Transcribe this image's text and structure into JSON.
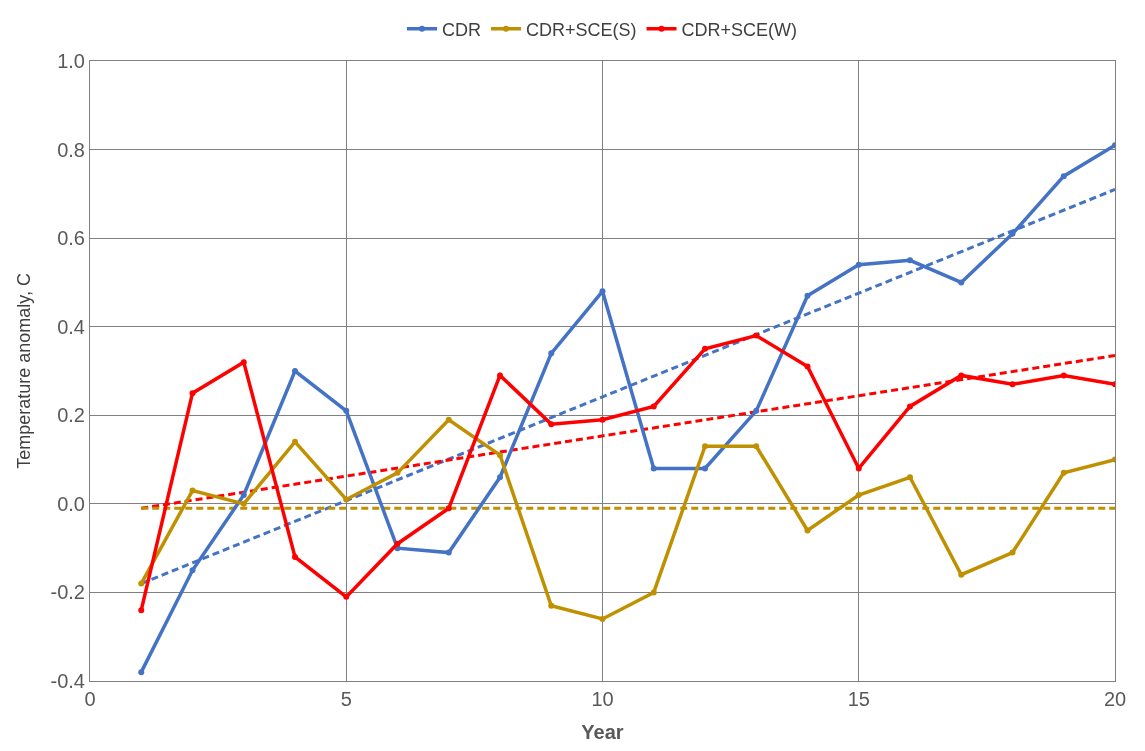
{
  "chart_data": {
    "type": "line",
    "xlabel": "Year",
    "ylabel": "Temperature anomaly, C",
    "x": [
      1,
      2,
      3,
      4,
      5,
      6,
      7,
      8,
      9,
      10,
      11,
      12,
      13,
      14,
      15,
      16,
      17,
      18,
      19,
      20
    ],
    "series": [
      {
        "name": "CDR",
        "color": "#4472c4",
        "marker": "circle",
        "line_style": "solid",
        "values": [
          -0.38,
          -0.15,
          0.02,
          0.3,
          0.21,
          -0.1,
          -0.11,
          0.06,
          0.34,
          0.48,
          0.08,
          0.08,
          0.21,
          0.47,
          0.54,
          0.55,
          0.5,
          0.61,
          0.74,
          0.81
        ]
      },
      {
        "name": "CDR+SCE(S)",
        "color": "#bf9000",
        "marker": "circle",
        "line_style": "solid",
        "values": [
          -0.18,
          0.03,
          0.0,
          0.14,
          0.01,
          0.07,
          0.19,
          0.11,
          -0.23,
          -0.26,
          -0.2,
          0.13,
          0.13,
          -0.06,
          0.02,
          0.06,
          -0.16,
          -0.11,
          0.07,
          0.1
        ]
      },
      {
        "name": "CDR+SCE(W)",
        "color": "#ff0000",
        "marker": "circle",
        "line_style": "solid",
        "values": [
          -0.24,
          0.25,
          0.32,
          -0.12,
          -0.21,
          -0.09,
          -0.01,
          0.29,
          0.18,
          0.19,
          0.22,
          0.35,
          0.38,
          0.31,
          0.08,
          0.22,
          0.29,
          0.27,
          0.29,
          0.27
        ]
      },
      {
        "color": "#4472c4",
        "marker": "none",
        "line_style": "dashed",
        "values": [
          -0.18,
          null,
          null,
          null,
          null,
          null,
          null,
          null,
          null,
          null,
          null,
          null,
          null,
          null,
          null,
          null,
          null,
          null,
          null,
          0.71
        ]
      },
      {
        "color": "#ff0000",
        "marker": "none",
        "line_style": "dashed",
        "values": [
          -0.01,
          null,
          null,
          null,
          null,
          null,
          null,
          null,
          null,
          null,
          null,
          null,
          null,
          null,
          null,
          null,
          null,
          null,
          null,
          0.335
        ]
      },
      {
        "color": "#bf9000",
        "marker": "none",
        "line_style": "dashed",
        "values": [
          -0.01,
          null,
          null,
          null,
          null,
          null,
          null,
          null,
          null,
          null,
          null,
          null,
          null,
          null,
          null,
          null,
          null,
          null,
          null,
          -0.01
        ]
      }
    ],
    "xlim": [
      0,
      20
    ],
    "xticks": [
      0,
      5,
      10,
      15,
      20
    ],
    "ylim": [
      -0.4,
      1.0
    ],
    "yticks": [
      {
        "value": -0.4,
        "label": "-0.4"
      },
      {
        "value": -0.2,
        "label": "-0.2"
      },
      {
        "value": 0,
        "label": "0.0"
      },
      {
        "value": 0.2,
        "label": "0.2"
      },
      {
        "value": 0.4,
        "label": "0.4"
      },
      {
        "value": 0.6,
        "label": "0.6"
      },
      {
        "value": 0.8,
        "label": "0.8"
      },
      {
        "value": 1.0,
        "label": "1.0"
      }
    ],
    "grid": true,
    "legend": "top"
  }
}
